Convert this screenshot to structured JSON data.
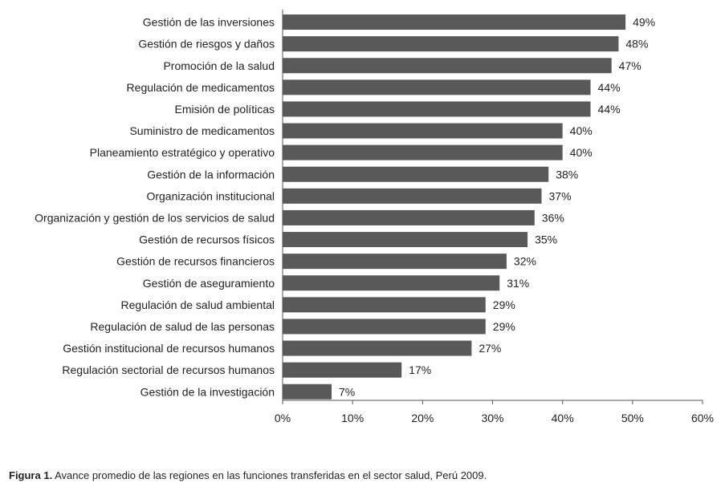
{
  "chart_data": {
    "type": "bar",
    "orientation": "horizontal",
    "categories": [
      "Gestión de las inversiones",
      "Gestión de riesgos y daños",
      "Promoción de la salud",
      "Regulación de medicamentos",
      "Emisión de políticas",
      "Suministro de medicamentos",
      "Planeamiento estratégico y operativo",
      "Gestión de la información",
      "Organización institucional",
      "Organización y gestión de los servicios de salud",
      "Gestión de recursos físicos",
      "Gestión de recursos financieros",
      "Gestión de aseguramiento",
      "Regulación de salud ambiental",
      "Regulación de salud de las personas",
      "Gestión institucional de recursos humanos",
      "Regulación sectorial de recursos humanos",
      "Gestión de la investigación"
    ],
    "values": [
      49,
      48,
      47,
      44,
      44,
      40,
      40,
      38,
      37,
      36,
      35,
      32,
      31,
      29,
      29,
      27,
      17,
      7
    ],
    "value_labels": [
      "49%",
      "48%",
      "47%",
      "44%",
      "44%",
      "40%",
      "40%",
      "38%",
      "37%",
      "36%",
      "35%",
      "32%",
      "31%",
      "29%",
      "29%",
      "27%",
      "17%",
      "7%"
    ],
    "xlim": [
      0,
      60
    ],
    "x_ticks": [
      0,
      10,
      20,
      30,
      40,
      50,
      60
    ],
    "x_tick_labels": [
      "0%",
      "10%",
      "20%",
      "30%",
      "40%",
      "50%",
      "60%"
    ],
    "grid": false,
    "legend": "none",
    "bar_color": "#595959",
    "title": "",
    "xlabel": "",
    "ylabel": ""
  },
  "caption": {
    "label": "Figura 1.",
    "text": " Avance promedio de las regiones en las funciones transferidas en el sector salud, Perú 2009."
  }
}
